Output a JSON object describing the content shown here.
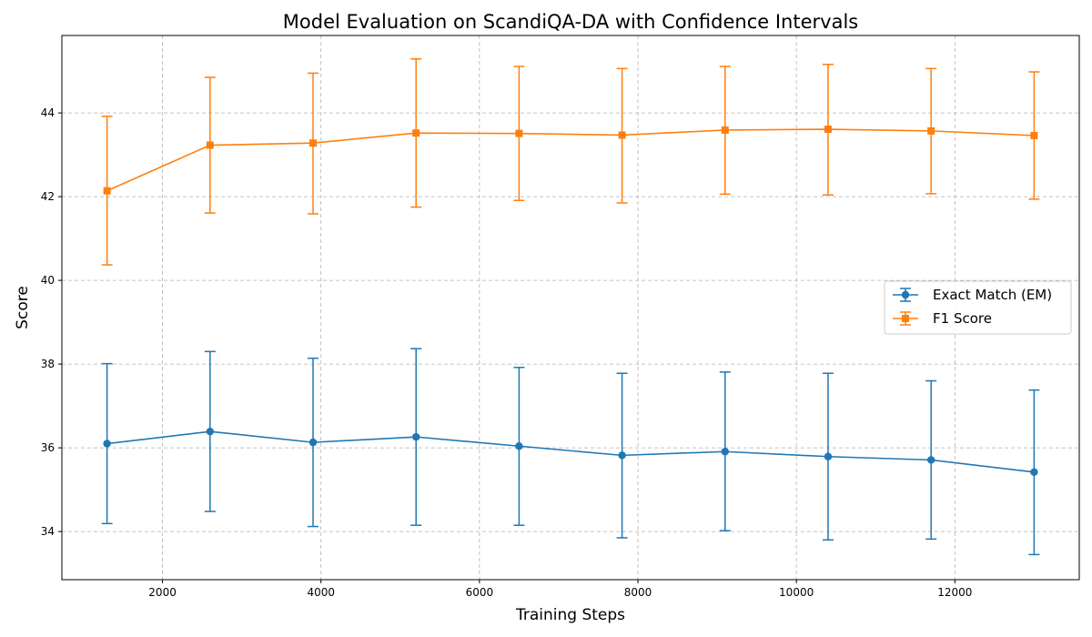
{
  "chart_data": {
    "type": "line",
    "title": "Model Evaluation on ScandiQA-DA with Confidence Intervals",
    "xlabel": "Training Steps",
    "ylabel": "Score",
    "xlim": [
      730,
      13570
    ],
    "ylim": [
      32.85,
      45.85
    ],
    "x_ticks": [
      2000,
      4000,
      6000,
      8000,
      10000,
      12000
    ],
    "y_ticks": [
      34,
      36,
      38,
      40,
      42,
      44
    ],
    "grid": true,
    "grid_style": "dashed",
    "legend_position": "center-right",
    "x": [
      1300,
      2600,
      3900,
      5200,
      6500,
      7800,
      9100,
      10400,
      11700,
      13000
    ],
    "series": [
      {
        "name": "Exact Match (EM)",
        "marker": "circle",
        "color": "#1f77b4",
        "values": [
          36.1,
          36.39,
          36.13,
          36.26,
          36.04,
          35.82,
          35.91,
          35.79,
          35.71,
          35.42
        ],
        "err_low": [
          34.19,
          34.48,
          34.12,
          34.15,
          34.15,
          33.85,
          34.02,
          33.8,
          33.82,
          33.45
        ],
        "err_high": [
          38.01,
          38.3,
          38.14,
          38.37,
          37.92,
          37.78,
          37.81,
          37.78,
          37.6,
          37.38
        ]
      },
      {
        "name": "F1 Score",
        "marker": "square",
        "color": "#ff7f0e",
        "values": [
          42.14,
          43.23,
          43.28,
          43.52,
          43.51,
          43.47,
          43.59,
          43.61,
          43.57,
          43.46
        ],
        "err_low": [
          40.37,
          41.61,
          41.59,
          41.75,
          41.91,
          41.85,
          42.06,
          42.04,
          42.07,
          41.94
        ],
        "err_high": [
          43.92,
          44.85,
          44.95,
          45.29,
          45.11,
          45.06,
          45.11,
          45.16,
          45.06,
          44.98
        ]
      }
    ]
  }
}
